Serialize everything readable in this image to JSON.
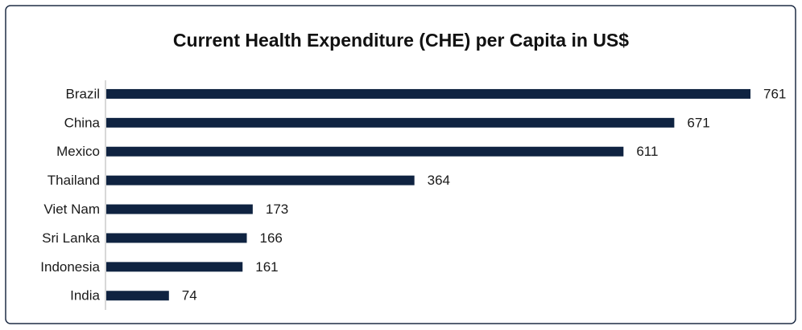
{
  "chart_data": {
    "type": "bar",
    "orientation": "horizontal",
    "title": "Current Health Expenditure (CHE) per Capita in US$",
    "categories": [
      "Brazil",
      "China",
      "Mexico",
      "Thailand",
      "Viet Nam",
      "Sri Lanka",
      "Indonesia",
      "India"
    ],
    "values": [
      761,
      671,
      611,
      364,
      173,
      166,
      161,
      74
    ],
    "color": "#0f2341"
  }
}
